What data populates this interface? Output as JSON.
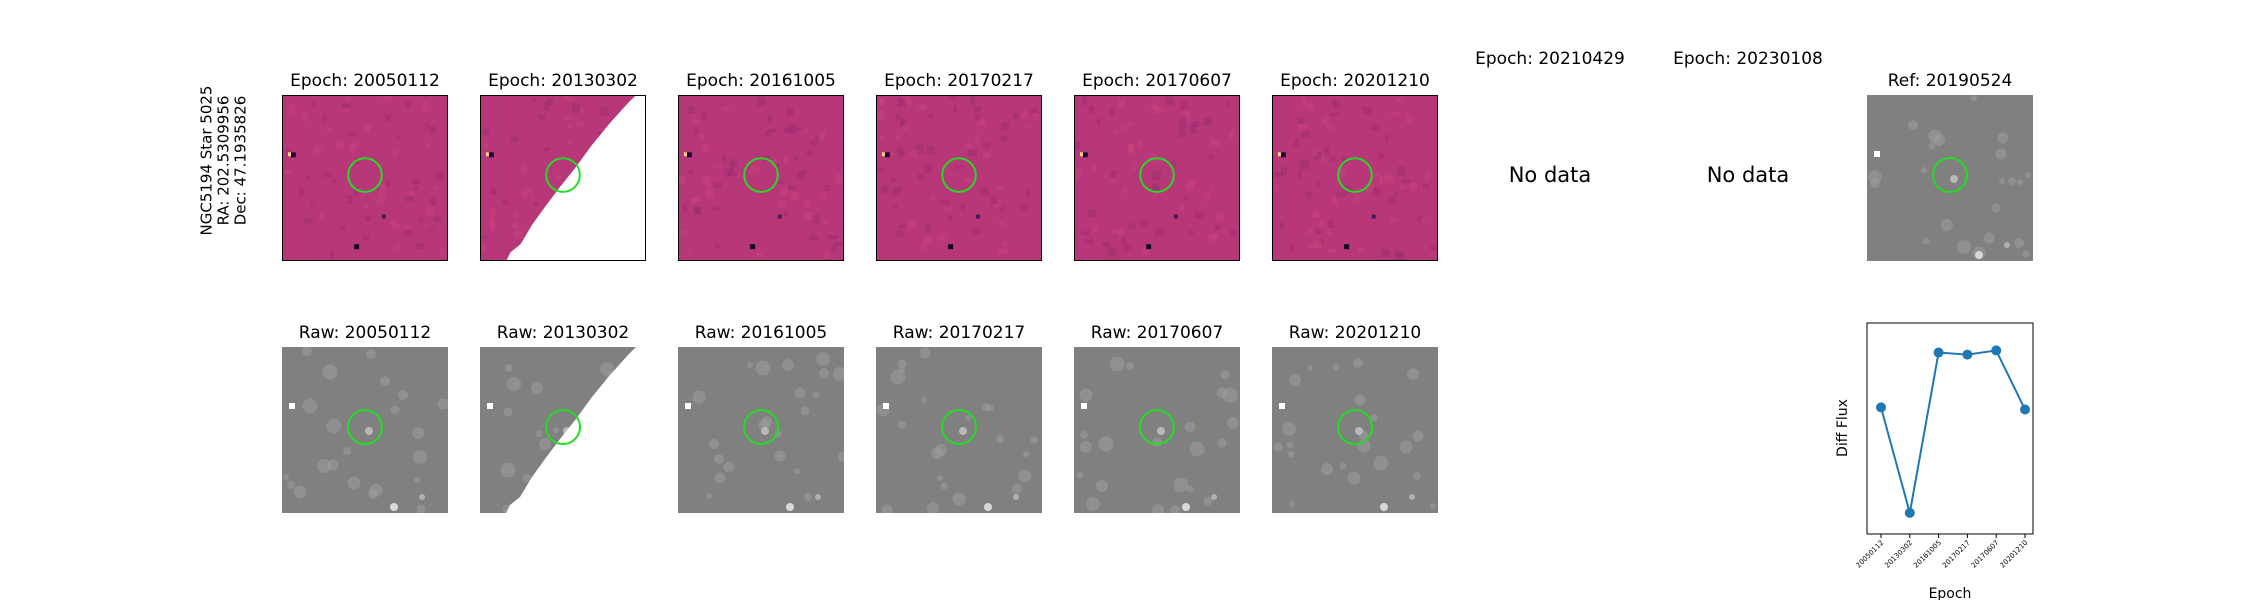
{
  "row_label": {
    "line1": "NGC5194 Star 5025",
    "line2": "RA: 202.5309956",
    "line3": "Dec: 47.1935826"
  },
  "diff_panels": [
    {
      "title": "Epoch: 20050112",
      "style": "diff"
    },
    {
      "title": "Epoch: 20130302",
      "style": "diff-masked"
    },
    {
      "title": "Epoch: 20161005",
      "style": "diff"
    },
    {
      "title": "Epoch: 20170217",
      "style": "diff"
    },
    {
      "title": "Epoch: 20170607",
      "style": "diff"
    },
    {
      "title": "Epoch: 20201210",
      "style": "diff"
    },
    {
      "title": "Epoch: 20210429",
      "nodata": "No data"
    },
    {
      "title": "Epoch: 20230108",
      "nodata": "No data"
    },
    {
      "title": "Ref: 20190524",
      "style": "raw"
    }
  ],
  "raw_panels": [
    {
      "title": "Raw: 20050112",
      "style": "raw"
    },
    {
      "title": "Raw: 20130302",
      "style": "raw-masked"
    },
    {
      "title": "Raw: 20161005",
      "style": "raw"
    },
    {
      "title": "Raw: 20170217",
      "style": "raw"
    },
    {
      "title": "Raw: 20170607",
      "style": "raw"
    },
    {
      "title": "Raw: 20201210",
      "style": "raw"
    }
  ],
  "colors": {
    "diff_bg": "#b73779",
    "raw_bg": "#808080",
    "circle": "#22dd22",
    "line": "#1f77b4"
  },
  "chart_data": {
    "type": "line",
    "xlabel": "Epoch",
    "ylabel": "Diff Flux",
    "categories": [
      "20050112",
      "20130302",
      "20161005",
      "20170217",
      "20170607",
      "20201210"
    ],
    "values": [
      0.6,
      0.1,
      0.86,
      0.85,
      0.87,
      0.59
    ],
    "ylim": [
      0.0,
      1.0
    ],
    "yticks_shown": false
  }
}
